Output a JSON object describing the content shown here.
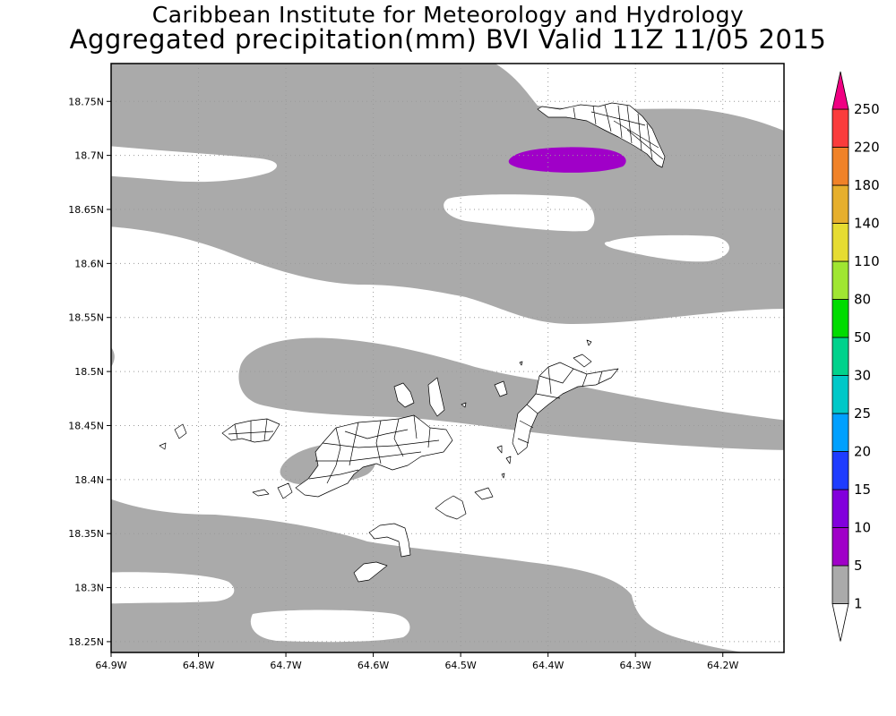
{
  "header": {
    "title": "Caribbean Institute for Meteorology and Hydrology",
    "subtitle": "Aggregated precipitation(mm) BVI Valid 11Z 11/05 2015"
  },
  "map": {
    "region": "British Virgin Islands",
    "lon_range": [
      -64.9,
      -64.13
    ],
    "lat_range": [
      18.24,
      18.785
    ],
    "lon_ticks": [
      {
        "value": -64.9,
        "label": "64.9W"
      },
      {
        "value": -64.8,
        "label": "64.8W"
      },
      {
        "value": -64.7,
        "label": "64.7W"
      },
      {
        "value": -64.6,
        "label": "64.6W"
      },
      {
        "value": -64.5,
        "label": "64.5W"
      },
      {
        "value": -64.4,
        "label": "64.4W"
      },
      {
        "value": -64.3,
        "label": "64.3W"
      },
      {
        "value": -64.2,
        "label": "64.2W"
      }
    ],
    "lat_ticks": [
      {
        "value": 18.75,
        "label": "18.75N"
      },
      {
        "value": 18.7,
        "label": "18.7N"
      },
      {
        "value": 18.65,
        "label": "18.65N"
      },
      {
        "value": 18.6,
        "label": "18.6N"
      },
      {
        "value": 18.55,
        "label": "18.55N"
      },
      {
        "value": 18.5,
        "label": "18.5N"
      },
      {
        "value": 18.45,
        "label": "18.45N"
      },
      {
        "value": 18.4,
        "label": "18.4N"
      },
      {
        "value": 18.35,
        "label": "18.35N"
      },
      {
        "value": 18.3,
        "label": "18.3N"
      },
      {
        "value": 18.25,
        "label": "18.25N"
      }
    ],
    "grid": "dotted",
    "layers": [
      {
        "name": "precipitation 1-5 mm",
        "bin": "1-5",
        "color": "#aaaaaa"
      },
      {
        "name": "precipitation 5-10 mm",
        "bin": "5-10",
        "color": "#a000c8"
      },
      {
        "name": "coastlines and district boundaries",
        "color": "#000000"
      }
    ]
  },
  "colorbar": {
    "levels": [
      "1",
      "5",
      "10",
      "15",
      "20",
      "25",
      "30",
      "50",
      "80",
      "110",
      "140",
      "180",
      "220",
      "250"
    ],
    "colors": [
      "#aaaaaa",
      "#a000c8",
      "#8200dc",
      "#1e3cff",
      "#00a0ff",
      "#00c8c8",
      "#00d28c",
      "#00dc00",
      "#a0e632",
      "#e6dc32",
      "#e6af2d",
      "#f08228",
      "#fa3c3c",
      "#f00082"
    ],
    "below_color": "#ffffff"
  }
}
